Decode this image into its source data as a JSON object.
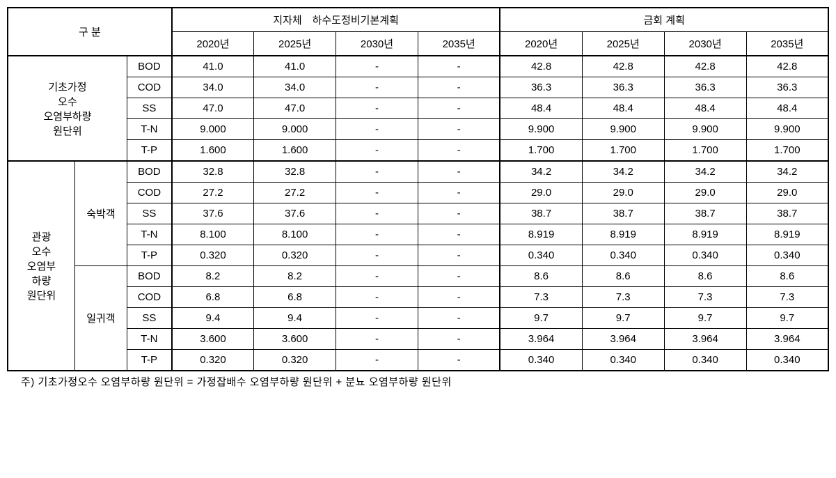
{
  "headers": {
    "division": "구 분",
    "group1": "지자체 하수도정비기본계획",
    "group2": "금회 계획",
    "years": [
      "2020년",
      "2025년",
      "2030년",
      "2035년"
    ]
  },
  "section1": {
    "label_line1": "기초가정",
    "label_line2": "오수",
    "label_line3": "오염부하량",
    "label_line4": "원단위",
    "metrics": [
      "BOD",
      "COD",
      "SS",
      "T-N",
      "T-P"
    ],
    "rows": [
      [
        "41.0",
        "41.0",
        "-",
        "-",
        "42.8",
        "42.8",
        "42.8",
        "42.8"
      ],
      [
        "34.0",
        "34.0",
        "-",
        "-",
        "36.3",
        "36.3",
        "36.3",
        "36.3"
      ],
      [
        "47.0",
        "47.0",
        "-",
        "-",
        "48.4",
        "48.4",
        "48.4",
        "48.4"
      ],
      [
        "9.000",
        "9.000",
        "-",
        "-",
        "9.900",
        "9.900",
        "9.900",
        "9.900"
      ],
      [
        "1.600",
        "1.600",
        "-",
        "-",
        "1.700",
        "1.700",
        "1.700",
        "1.700"
      ]
    ]
  },
  "section2": {
    "label_line1": "관광",
    "label_line2": "오수",
    "label_line3": "오염부",
    "label_line4": "하량",
    "label_line5": "원단위",
    "sub1_label": "숙박객",
    "sub2_label": "일귀객",
    "metrics": [
      "BOD",
      "COD",
      "SS",
      "T-N",
      "T-P"
    ],
    "sub1_rows": [
      [
        "32.8",
        "32.8",
        "-",
        "-",
        "34.2",
        "34.2",
        "34.2",
        "34.2"
      ],
      [
        "27.2",
        "27.2",
        "-",
        "-",
        "29.0",
        "29.0",
        "29.0",
        "29.0"
      ],
      [
        "37.6",
        "37.6",
        "-",
        "-",
        "38.7",
        "38.7",
        "38.7",
        "38.7"
      ],
      [
        "8.100",
        "8.100",
        "-",
        "-",
        "8.919",
        "8.919",
        "8.919",
        "8.919"
      ],
      [
        "0.320",
        "0.320",
        "-",
        "-",
        "0.340",
        "0.340",
        "0.340",
        "0.340"
      ]
    ],
    "sub2_rows": [
      [
        "8.2",
        "8.2",
        "-",
        "-",
        "8.6",
        "8.6",
        "8.6",
        "8.6"
      ],
      [
        "6.8",
        "6.8",
        "-",
        "-",
        "7.3",
        "7.3",
        "7.3",
        "7.3"
      ],
      [
        "9.4",
        "9.4",
        "-",
        "-",
        "9.7",
        "9.7",
        "9.7",
        "9.7"
      ],
      [
        "3.600",
        "3.600",
        "-",
        "-",
        "3.964",
        "3.964",
        "3.964",
        "3.964"
      ],
      [
        "0.320",
        "0.320",
        "-",
        "-",
        "0.340",
        "0.340",
        "0.340",
        "0.340"
      ]
    ]
  },
  "footnote": "주) 기초가정오수 오염부하량 원단위 = 가정잡배수 오염부하량 원단위 + 분뇨 오염부하량 원단위"
}
